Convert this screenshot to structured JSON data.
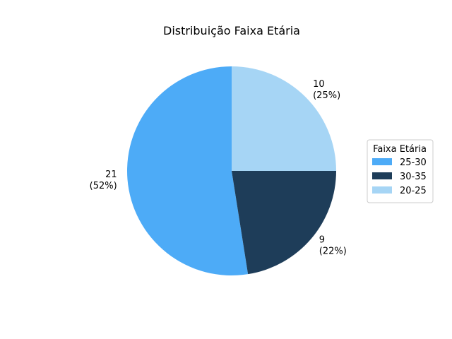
{
  "chart_data": {
    "type": "pie",
    "title": "Distribuição Faixa Etária",
    "slices": [
      {
        "label": "20-25",
        "value": 10,
        "percent_label": "(25%)",
        "color": "#a6d5f5"
      },
      {
        "label": "25-30",
        "value": 21,
        "percent_label": "(52%)",
        "color": "#4dabf7"
      },
      {
        "label": "30-35",
        "value": 9,
        "percent_label": "(22%)",
        "color": "#1e3d59"
      }
    ],
    "legend": {
      "title": "Faixa Etária",
      "placement": "right",
      "entries": [
        {
          "label": "25-30",
          "color": "#4dabf7"
        },
        {
          "label": "30-35",
          "color": "#1e3d59"
        },
        {
          "label": "20-25",
          "color": "#a6d5f5"
        }
      ]
    }
  }
}
